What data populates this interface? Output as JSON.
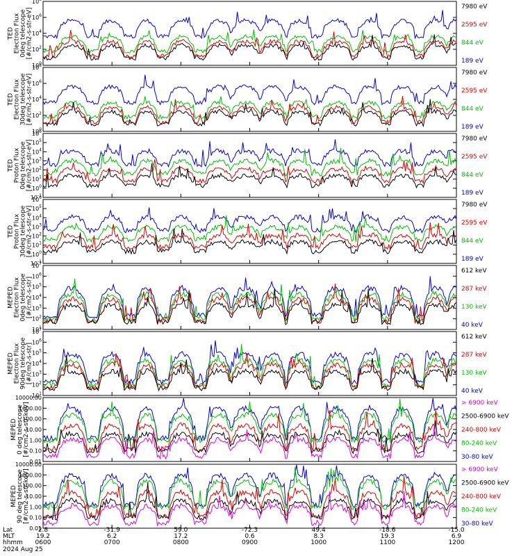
{
  "chart_data": {
    "type": "line",
    "panels": [
      {
        "ylabel": [
          "TED",
          "Electron Flux",
          "0deg telescope",
          "[#/cm2-s-str-eV]"
        ],
        "scale": "log",
        "ytick_labels": [
          "10^0",
          "10^2",
          "10^4",
          "10^6",
          "10^8"
        ],
        "ylim_exp": [
          0,
          8
        ],
        "channels": [
          {
            "name": "7980 eV",
            "color": "#000000"
          },
          {
            "name": "2595 eV",
            "color": "#e00000"
          },
          {
            "name": "844 eV",
            "color": "#00c000"
          },
          {
            "name": "189 eV",
            "color": "#0000e0"
          }
        ]
      },
      {
        "ylabel": [
          "TED",
          "Electron Flux",
          "30deg telescope",
          "[#/cm2-s-str-eV]"
        ],
        "scale": "log",
        "ytick_labels": [
          "10^0",
          "10^2",
          "10^4",
          "10^6",
          "10^8"
        ],
        "ylim_exp": [
          0,
          8
        ],
        "channels": [
          {
            "name": "7980 eV",
            "color": "#000000"
          },
          {
            "name": "2595 eV",
            "color": "#e00000"
          },
          {
            "name": "844 eV",
            "color": "#00c000"
          },
          {
            "name": "189 eV",
            "color": "#0000e0"
          }
        ]
      },
      {
        "ylabel": [
          "TED",
          "Proton Flux",
          "0deg telescope",
          "[#/cm2-s-str-eV]"
        ],
        "scale": "log",
        "ytick_labels": [
          "10^-1",
          "10^0",
          "10^1",
          "10^2",
          "10^3",
          "10^4",
          "10^5",
          "10^6"
        ],
        "ylim_exp": [
          -1,
          6
        ],
        "channels": [
          {
            "name": "7980 eV",
            "color": "#000000"
          },
          {
            "name": "2595 eV",
            "color": "#e00000"
          },
          {
            "name": "844 eV",
            "color": "#00c000"
          },
          {
            "name": "189 eV",
            "color": "#0000e0"
          }
        ]
      },
      {
        "ylabel": [
          "TED",
          "Proton Flux",
          "30deg telescope",
          "[#/cm2-s-str-eV]"
        ],
        "scale": "log",
        "ytick_labels": [
          "10^-1",
          "10^0",
          "10^1",
          "10^2",
          "10^3",
          "10^4",
          "10^5",
          "10^6"
        ],
        "ylim_exp": [
          -1,
          6
        ],
        "channels": [
          {
            "name": "7980 eV",
            "color": "#000000"
          },
          {
            "name": "2595 eV",
            "color": "#e00000"
          },
          {
            "name": "844 eV",
            "color": "#00c000"
          },
          {
            "name": "189 eV",
            "color": "#0000e0"
          }
        ]
      },
      {
        "ylabel": [
          "MEPED",
          "Electron Flux",
          "0deg telescope",
          "[#/cm2-s-str]"
        ],
        "scale": "log",
        "ytick_labels": [
          "10^1",
          "10^2",
          "10^3",
          "10^4",
          "10^5",
          "10^6",
          "10^7"
        ],
        "ylim_exp": [
          1,
          7
        ],
        "channels": [
          {
            "name": "612 keV",
            "color": "#000000"
          },
          {
            "name": "287 keV",
            "color": "#e00000"
          },
          {
            "name": "130 keV",
            "color": "#00c000"
          },
          {
            "name": "40 keV",
            "color": "#0000e0"
          }
        ]
      },
      {
        "ylabel": [
          "MEPED",
          "Electron Flux",
          "90deg telescope",
          "[#/cm2-s-str]"
        ],
        "scale": "log",
        "ytick_labels": [
          "10^1",
          "10^2",
          "10^3",
          "10^4",
          "10^5",
          "10^6",
          "10^7"
        ],
        "ylim_exp": [
          1,
          7
        ],
        "channels": [
          {
            "name": "612 keV",
            "color": "#000000"
          },
          {
            "name": "287 keV",
            "color": "#e00000"
          },
          {
            "name": "130 keV",
            "color": "#00c000"
          },
          {
            "name": "40 keV",
            "color": "#0000e0"
          }
        ]
      },
      {
        "ylabel": [
          "MEPED",
          "0 deg telescope",
          "[#/cm2-s-str-keV]"
        ],
        "scale": "log",
        "ytick_labels": [
          "0.01",
          "0.10",
          "1.00",
          "10.00",
          "100.00",
          "1000.00",
          "10000.00"
        ],
        "ylim_exp": [
          -2,
          4
        ],
        "channels": [
          {
            "name": "> 6900 keV",
            "color": "#e000e0"
          },
          {
            "name": "2500-6900 keV",
            "color": "#000000"
          },
          {
            "name": "240-800 keV",
            "color": "#e00000"
          },
          {
            "name": "80-240 keV",
            "color": "#00c000"
          },
          {
            "name": "30-80 keV",
            "color": "#0000e0"
          }
        ]
      },
      {
        "ylabel": [
          "MEPED",
          "90 deg telescope",
          "[#/cm2-s-str-keV]"
        ],
        "scale": "log",
        "ytick_labels": [
          "0.01",
          "0.10",
          "1.00",
          "10.00",
          "100.00",
          "1000.00",
          "10000.00"
        ],
        "ylim_exp": [
          -2,
          4
        ],
        "channels": [
          {
            "name": "> 6900 keV",
            "color": "#e000e0"
          },
          {
            "name": "2500-6900 keV",
            "color": "#000000"
          },
          {
            "name": "240-800 keV",
            "color": "#e00000"
          },
          {
            "name": "80-240 keV",
            "color": "#00c000"
          },
          {
            "name": "30-80 keV",
            "color": "#0000e0"
          }
        ]
      }
    ],
    "x_axis": {
      "row_labels": [
        "Lat",
        "MLT",
        "hhmm"
      ],
      "ticks": [
        {
          "lat": "2.8",
          "mlt": "19.2",
          "hhmm": "0600"
        },
        {
          "lat": "-31.9",
          "mlt": "6.2",
          "hhmm": "0700"
        },
        {
          "lat": "59.0",
          "mlt": "17.2",
          "hhmm": "0800"
        },
        {
          "lat": "-72.3",
          "mlt": "0.6",
          "hhmm": "0900"
        },
        {
          "lat": "49.4",
          "mlt": "8.3",
          "hhmm": "1000"
        },
        {
          "lat": "-18.6",
          "mlt": "19.3",
          "hhmm": "1100"
        },
        {
          "lat": "-15.0",
          "mlt": "6.9",
          "hhmm": "1200"
        }
      ],
      "date": "2024 Aug 25"
    },
    "passes": [
      {
        "center": 0.07,
        "width": 0.035
      },
      {
        "center": 0.165,
        "width": 0.03
      },
      {
        "center": 0.25,
        "width": 0.025
      },
      {
        "center": 0.335,
        "width": 0.03
      },
      {
        "center": 0.425,
        "width": 0.03
      },
      {
        "center": 0.49,
        "width": 0.035
      },
      {
        "center": 0.555,
        "width": 0.03
      },
      {
        "center": 0.62,
        "width": 0.03
      },
      {
        "center": 0.71,
        "width": 0.035
      },
      {
        "center": 0.79,
        "width": 0.03
      },
      {
        "center": 0.87,
        "width": 0.03
      },
      {
        "center": 0.95,
        "width": 0.03
      },
      {
        "center": 0.997,
        "width": 0.02
      }
    ]
  }
}
